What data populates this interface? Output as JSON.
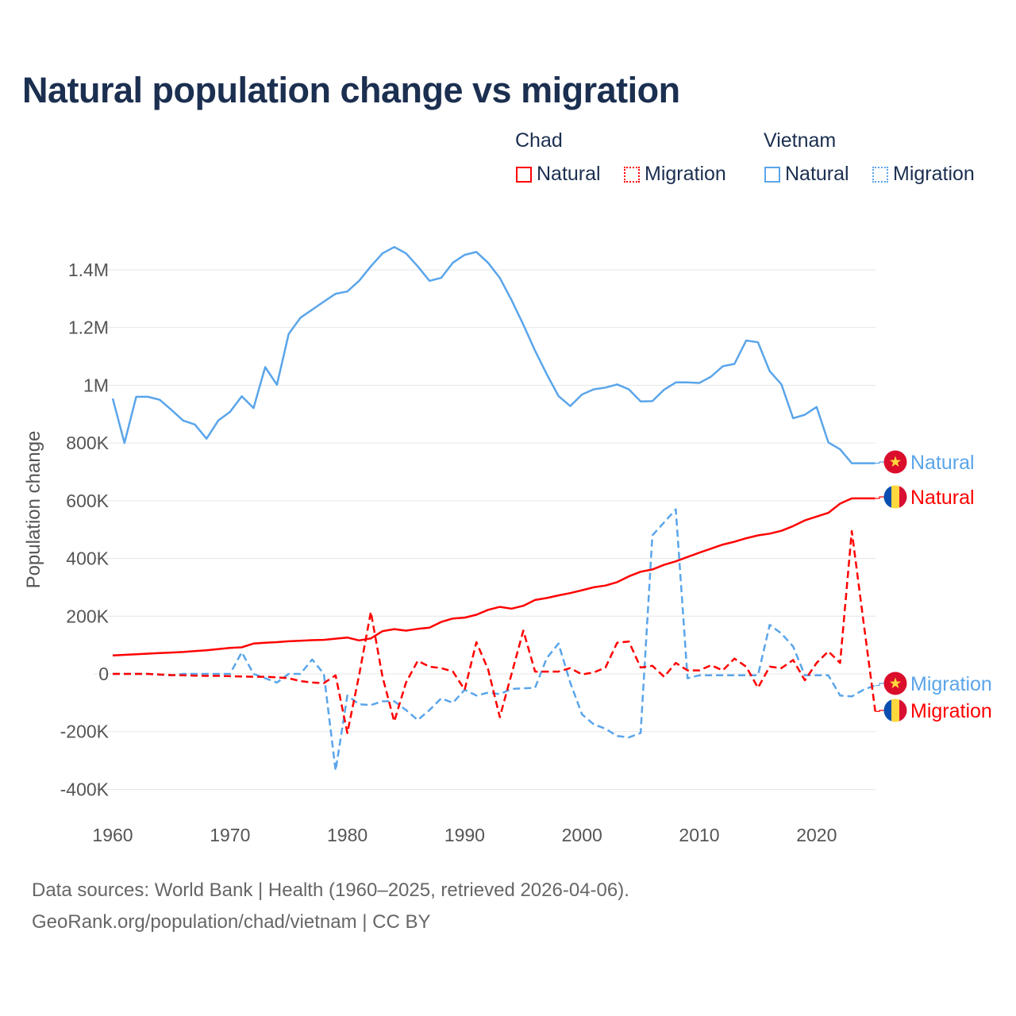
{
  "title": "Natural population change vs migration",
  "legend": {
    "groups": [
      {
        "name": "Chad",
        "color": "#ff0000",
        "items": [
          "Natural",
          "Migration"
        ]
      },
      {
        "name": "Vietnam",
        "color": "#5aa5ea",
        "items": [
          "Natural",
          "Migration"
        ]
      }
    ]
  },
  "footer": {
    "line1": "Data sources: World Bank | Health (1960–2025, retrieved 2026-04-06).",
    "line2": "GeoRank.org/population/chad/vietnam | CC BY"
  },
  "chart_data": {
    "type": "line",
    "title": "Natural population change vs migration",
    "xlabel": "",
    "ylabel": "Population change",
    "xlim": [
      1960,
      2025
    ],
    "ylim": [
      -400000,
      1400000
    ],
    "grid": true,
    "legend_placement": "top-right",
    "x_ticks": [
      "1960",
      "1970",
      "1980",
      "1990",
      "2000",
      "2010",
      "2020"
    ],
    "y_ticks": [
      {
        "value": -400000,
        "label": "-400K"
      },
      {
        "value": -200000,
        "label": "-200K"
      },
      {
        "value": 0,
        "label": "0"
      },
      {
        "value": 200000,
        "label": "200K"
      },
      {
        "value": 400000,
        "label": "400K"
      },
      {
        "value": 600000,
        "label": "600K"
      },
      {
        "value": 800000,
        "label": "800K"
      },
      {
        "value": 1000000,
        "label": "1M"
      },
      {
        "value": 1200000,
        "label": "1.2M"
      },
      {
        "value": 1400000,
        "label": "1.4M"
      }
    ],
    "x_start": 1960,
    "series": [
      {
        "name": "Vietnam Natural",
        "country": "Vietnam",
        "end_label": "Natural",
        "color": "#5aa5ea",
        "dashed": false,
        "values": [
          954,
          800,
          960,
          960,
          950,
          915,
          878,
          864,
          815,
          878,
          908,
          962,
          921,
          1063,
          1002,
          1178,
          1234,
          1262,
          1290,
          1317,
          1325,
          1362,
          1412,
          1457,
          1479,
          1457,
          1412,
          1362,
          1372,
          1425,
          1452,
          1462,
          1424,
          1372,
          1295,
          1210,
          1120,
          1038,
          963,
          928,
          968,
          986,
          992,
          1003,
          986,
          944,
          945,
          985,
          1010,
          1010,
          1008,
          1030,
          1066,
          1074,
          1155,
          1149,
          1049,
          1003,
          886,
          898,
          925,
          802,
          778,
          730,
          730,
          730
        ]
      },
      {
        "name": "Chad Natural",
        "country": "Chad",
        "end_label": "Natural",
        "color": "#ff0000",
        "dashed": false,
        "values": [
          64,
          66,
          68,
          70,
          72,
          74,
          76,
          79,
          82,
          86,
          90,
          92,
          105,
          108,
          110,
          113,
          115,
          117,
          118,
          122,
          126,
          116,
          123,
          148,
          155,
          150,
          156,
          160,
          180,
          192,
          195,
          205,
          222,
          232,
          226,
          236,
          256,
          263,
          272,
          280,
          290,
          300,
          306,
          318,
          338,
          354,
          362,
          378,
          390,
          405,
          420,
          434,
          448,
          458,
          470,
          480,
          486,
          496,
          512,
          532,
          545,
          558,
          590,
          608,
          608,
          608
        ]
      },
      {
        "name": "Vietnam Migration",
        "country": "Vietnam",
        "end_label": "Migration",
        "color": "#5aa5ea",
        "dashed": true,
        "values": [
          0,
          0,
          0,
          0,
          -3,
          -5,
          0,
          0,
          0,
          0,
          0,
          75,
          0,
          -15,
          -30,
          0,
          0,
          50,
          0,
          -335,
          -75,
          -105,
          -108,
          -95,
          -95,
          -125,
          -160,
          -125,
          -85,
          -100,
          -55,
          -75,
          -65,
          -70,
          -52,
          -50,
          -48,
          55,
          105,
          -30,
          -140,
          -175,
          -190,
          -215,
          -220,
          -205,
          480,
          525,
          570,
          -15,
          -5,
          -5,
          -5,
          -5,
          -5,
          -5,
          170,
          140,
          95,
          -5,
          -5,
          -5,
          -75,
          -78,
          -55,
          -40
        ]
      },
      {
        "name": "Chad Migration",
        "country": "Chad",
        "end_label": "Migration",
        "color": "#ff0000",
        "dashed": true,
        "values": [
          0,
          0,
          0,
          0,
          -2,
          -4,
          -5,
          -6,
          -7,
          -7,
          -8,
          -9,
          -10,
          -10,
          -12,
          -15,
          -25,
          -30,
          -32,
          -5,
          -205,
          -5,
          215,
          -10,
          -165,
          -30,
          45,
          25,
          20,
          8,
          -55,
          110,
          15,
          -150,
          0,
          150,
          8,
          8,
          8,
          20,
          -2,
          5,
          22,
          108,
          112,
          22,
          28,
          -10,
          38,
          12,
          12,
          30,
          12,
          53,
          25,
          -48,
          25,
          20,
          48,
          -22,
          38,
          78,
          38,
          495,
          180,
          -130
        ]
      }
    ],
    "value_units": "thousands"
  }
}
